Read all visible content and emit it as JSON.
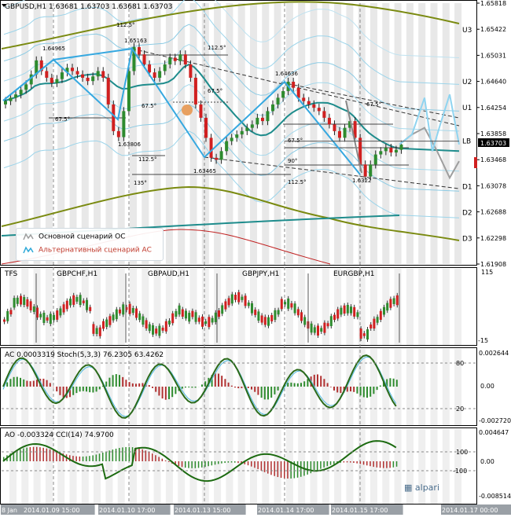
{
  "header": {
    "symbol_line": "GBPUSD,H1  1.63681 1.63703 1.63681 1.63703"
  },
  "levels": [
    {
      "name": "U3",
      "price": 1.6542
    },
    {
      "name": "U2",
      "price": 1.6464
    },
    {
      "name": "U1",
      "price": 1.6425
    },
    {
      "name": "LB",
      "price": 1.6375
    },
    {
      "name": "D1",
      "price": 1.6307
    },
    {
      "name": "D2",
      "price": 1.6268
    },
    {
      "name": "D3",
      "price": 1.6229
    }
  ],
  "price_ticks": [
    "1.65818",
    "1.65422",
    "1.65031",
    "1.64640",
    "1.64254",
    "1.63858",
    "1.63468",
    "1.63078",
    "1.62688",
    "1.62298",
    "1.61908"
  ],
  "current_price": "1.63703",
  "pivots": [
    {
      "label": "1.64965"
    },
    {
      "label": "1.65163"
    },
    {
      "label": "1.63806"
    },
    {
      "label": "1.63465"
    },
    {
      "label": "1.64636"
    },
    {
      "label": "1.6322"
    }
  ],
  "fibs": [
    "112.5°",
    "112.5°",
    "67.5°",
    "67.5°",
    "67.5°",
    "67.5°",
    "67.5°",
    "112.5°",
    "90°",
    "135°",
    "112.5°"
  ],
  "legend": {
    "main": "Основной сценарий ОС",
    "alt": "Альтернативный сценарий АС",
    "main_color": "#9e9e9e",
    "alt_color": "#2ea8d8"
  },
  "tfs": {
    "title": "TFS",
    "pairs": [
      "GBPCHF,H1",
      "GBPAUD,H1",
      "GBPJPY,H1",
      "EURGBP,H1"
    ],
    "scale_top": "115",
    "scale_bottom": "-15"
  },
  "ac_panel": {
    "title": "AC 0.0003319  Stoch(5,3,3) 76.2305 63.4262",
    "ticks": [
      "0.002644",
      "0.00",
      "-0.002720"
    ],
    "stoch_levels": [
      "80",
      "20"
    ]
  },
  "ao_panel": {
    "title": "AO -0.003324  CCI(14) 74.9700",
    "ticks": [
      "0.004647",
      "100",
      "0.00",
      "-100",
      "-0.008514"
    ]
  },
  "time_axis": [
    "8 Jan",
    "2014.01.09 15:00",
    "2014.01.10 17:00",
    "2014.01.13 15:00",
    "2014.01.14 17:00",
    "2014.01.15 17:00",
    "2014.01.17 00:00"
  ],
  "brand": "alpari",
  "chart_data": {
    "type": "line",
    "title": "GBPUSD,H1",
    "ylim": [
      1.61908,
      1.65818
    ],
    "closes": [
      1.6435,
      1.644,
      1.6445,
      1.6452,
      1.646,
      1.6475,
      1.6496,
      1.648,
      1.647,
      1.6462,
      1.6468,
      1.6478,
      1.6485,
      1.648,
      1.6475,
      1.647,
      1.6465,
      1.6472,
      1.648,
      1.647,
      1.643,
      1.639,
      1.6381,
      1.642,
      1.648,
      1.6516,
      1.6505,
      1.649,
      1.6478,
      1.647,
      1.648,
      1.649,
      1.65,
      1.6495,
      1.6505,
      1.649,
      1.647,
      1.643,
      1.641,
      1.638,
      1.635,
      1.6347,
      1.636,
      1.6375,
      1.638,
      1.6385,
      1.639,
      1.6395,
      1.64,
      1.641,
      1.6405,
      1.642,
      1.643,
      1.644,
      1.645,
      1.6464,
      1.6455,
      1.644,
      1.6435,
      1.643,
      1.6425,
      1.642,
      1.641,
      1.64,
      1.639,
      1.638,
      1.6395,
      1.6405,
      1.638,
      1.634,
      1.6322,
      1.634,
      1.6355,
      1.636,
      1.6365,
      1.6358,
      1.6362,
      1.637
    ],
    "scenario_main": [
      1.637,
      1.6385,
      1.6395,
      1.636,
      1.632,
      1.6345
    ],
    "scenario_alt": [
      1.637,
      1.6385,
      1.644,
      1.636,
      1.64,
      1.6445,
      1.637
    ]
  }
}
